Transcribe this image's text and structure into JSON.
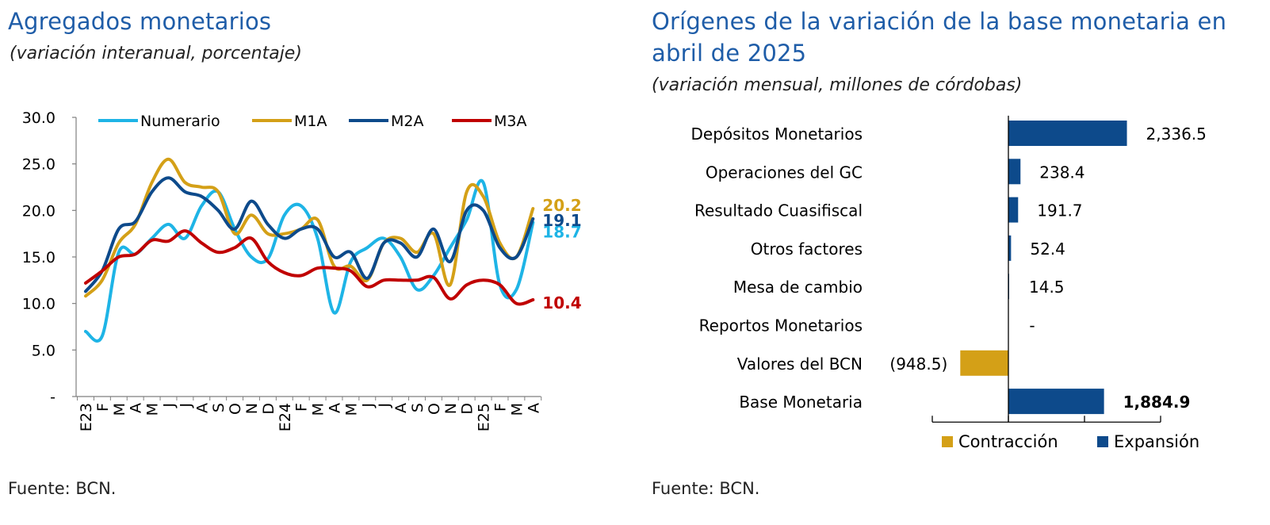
{
  "left_panel": {
    "title": "Agregados monetarios",
    "subtitle": "(variación interanual, porcentaje)",
    "source": "Fuente: BCN."
  },
  "right_panel": {
    "title_line1": "Orígenes de la variación de la base monetaria en",
    "title_line2": "abril de 2025",
    "subtitle": "(variación mensual, millones de córdobas)",
    "source": "Fuente: BCN."
  },
  "chart_data": [
    {
      "type": "line",
      "title": "Agregados monetarios",
      "ylim": [
        0,
        30
      ],
      "yticks": [
        {
          "value": 0,
          "label": "-"
        },
        {
          "value": 5,
          "label": "5.0"
        },
        {
          "value": 10,
          "label": "10.0"
        },
        {
          "value": 15,
          "label": "15.0"
        },
        {
          "value": 20,
          "label": "20.0"
        },
        {
          "value": 25,
          "label": "25.0"
        },
        {
          "value": 30,
          "label": "30.0"
        }
      ],
      "categories": [
        "E23",
        "F",
        "M",
        "A",
        "M",
        "J",
        "J",
        "A",
        "S",
        "O",
        "N",
        "D",
        "E24",
        "F",
        "M",
        "A",
        "M",
        "J",
        "J",
        "A",
        "S",
        "O",
        "N",
        "D",
        "E25",
        "F",
        "M",
        "A"
      ],
      "legend_position": "top",
      "grid": false,
      "series": [
        {
          "name": "Numerario",
          "color": "#1eb4e6",
          "values": [
            7.0,
            6.5,
            15.5,
            15.3,
            17.0,
            18.5,
            17.0,
            20.5,
            22.0,
            18.0,
            15.0,
            14.8,
            19.5,
            20.5,
            17.0,
            9.0,
            14.5,
            16.0,
            17.0,
            15.0,
            11.5,
            13.0,
            16.0,
            19.0,
            23.0,
            12.0,
            11.5,
            18.7
          ],
          "end_label": "18.7"
        },
        {
          "name": "M1A",
          "color": "#d4a017",
          "values": [
            10.8,
            12.5,
            16.5,
            18.5,
            23.0,
            25.5,
            23.0,
            22.5,
            22.0,
            17.5,
            19.5,
            17.5,
            17.5,
            18.0,
            19.0,
            14.0,
            14.0,
            12.5,
            16.5,
            17.0,
            15.5,
            17.5,
            12.0,
            22.0,
            21.5,
            16.5,
            15.0,
            20.2
          ],
          "end_label": "20.2"
        },
        {
          "name": "M2A",
          "color": "#0d4a8b",
          "values": [
            11.3,
            13.5,
            18.0,
            18.8,
            22.0,
            23.5,
            22.0,
            21.5,
            20.0,
            18.0,
            21.0,
            18.5,
            17.0,
            18.0,
            18.0,
            15.0,
            15.5,
            12.7,
            16.5,
            16.5,
            15.0,
            18.0,
            14.5,
            20.0,
            20.0,
            16.0,
            15.0,
            19.1
          ],
          "end_label": "19.1"
        },
        {
          "name": "M3A",
          "color": "#c00000",
          "values": [
            12.2,
            13.5,
            15.0,
            15.3,
            16.8,
            16.7,
            17.8,
            16.5,
            15.5,
            16.0,
            17.0,
            14.5,
            13.3,
            13.0,
            13.8,
            13.8,
            13.5,
            11.8,
            12.5,
            12.5,
            12.5,
            12.8,
            10.5,
            12.0,
            12.5,
            12.0,
            10.0,
            10.4
          ],
          "end_label": "10.4"
        }
      ]
    },
    {
      "type": "bar",
      "orientation": "horizontal",
      "title": "Orígenes de la variación de la base monetaria en abril de 2025",
      "categories": [
        "Depósitos Monetarios",
        "Operaciones del GC",
        "Resultado Cuasifiscal",
        "Otros factores",
        "Mesa de cambio",
        "Reportos Monetarios",
        "Valores del BCN",
        "Base Monetaria"
      ],
      "values": [
        2336.5,
        238.4,
        191.7,
        52.4,
        14.5,
        0,
        -948.5,
        1884.9
      ],
      "value_labels": [
        "2,336.5",
        "238.4",
        "191.7",
        "52.4",
        "14.5",
        "-",
        "(948.5)",
        "1,884.9"
      ],
      "bold_labels": [
        false,
        false,
        false,
        false,
        false,
        false,
        false,
        true
      ],
      "xlim": [
        -1500,
        3000
      ],
      "legend_position": "bottom-right",
      "legend": [
        {
          "name": "Contracción",
          "color": "#d4a017"
        },
        {
          "name": "Expansión",
          "color": "#0d4a8b"
        }
      ]
    }
  ]
}
